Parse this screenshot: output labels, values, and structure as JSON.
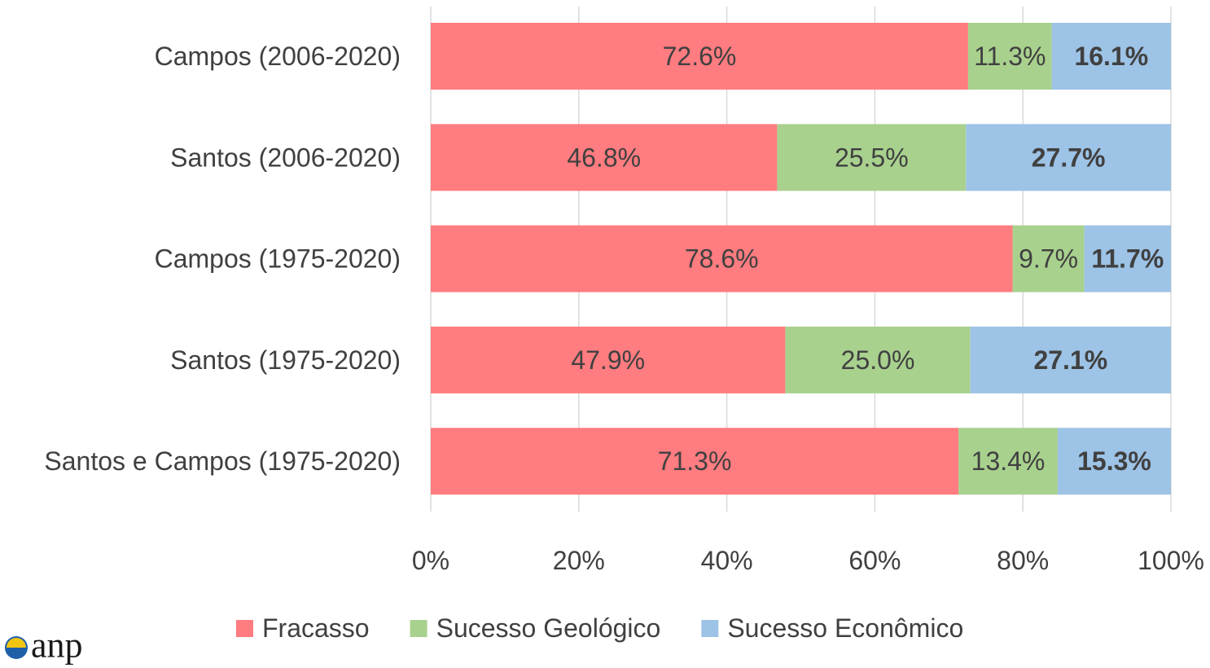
{
  "chart_data": {
    "type": "stacked-barh",
    "categories": [
      "Campos (2006-2020)",
      "Santos (2006-2020)",
      "Campos (1975-2020)",
      "Santos (1975-2020)",
      "Santos e Campos (1975-2020)"
    ],
    "series": [
      {
        "name": "Fracasso",
        "color": "#ff7c80",
        "values": [
          72.6,
          46.8,
          78.6,
          47.9,
          71.3
        ],
        "value_labels": [
          "72.6%",
          "46.8%",
          "78.6%",
          "47.9%",
          "71.3%"
        ]
      },
      {
        "name": "Sucesso Geológico",
        "color": "#a9d18e",
        "values": [
          11.3,
          25.5,
          9.7,
          25.0,
          13.4
        ],
        "value_labels": [
          "11.3%",
          "25.5%",
          "9.7%",
          "25.0%",
          "13.4%"
        ]
      },
      {
        "name": "Sucesso Econômico",
        "color": "#9dc3e6",
        "values": [
          16.1,
          27.7,
          11.7,
          27.1,
          15.3
        ],
        "value_labels": [
          "16.1%",
          "27.7%",
          "11.7%",
          "27.1%",
          "15.3%"
        ]
      }
    ],
    "xlim": [
      0,
      100
    ],
    "xticks": [
      {
        "value": 0,
        "label": "0%"
      },
      {
        "value": 20,
        "label": "20%"
      },
      {
        "value": 40,
        "label": "40%"
      },
      {
        "value": 60,
        "label": "60%"
      },
      {
        "value": 80,
        "label": "80%"
      },
      {
        "value": 100,
        "label": "100%"
      }
    ],
    "grid": true,
    "legend": "bottom"
  },
  "logo": "anp"
}
